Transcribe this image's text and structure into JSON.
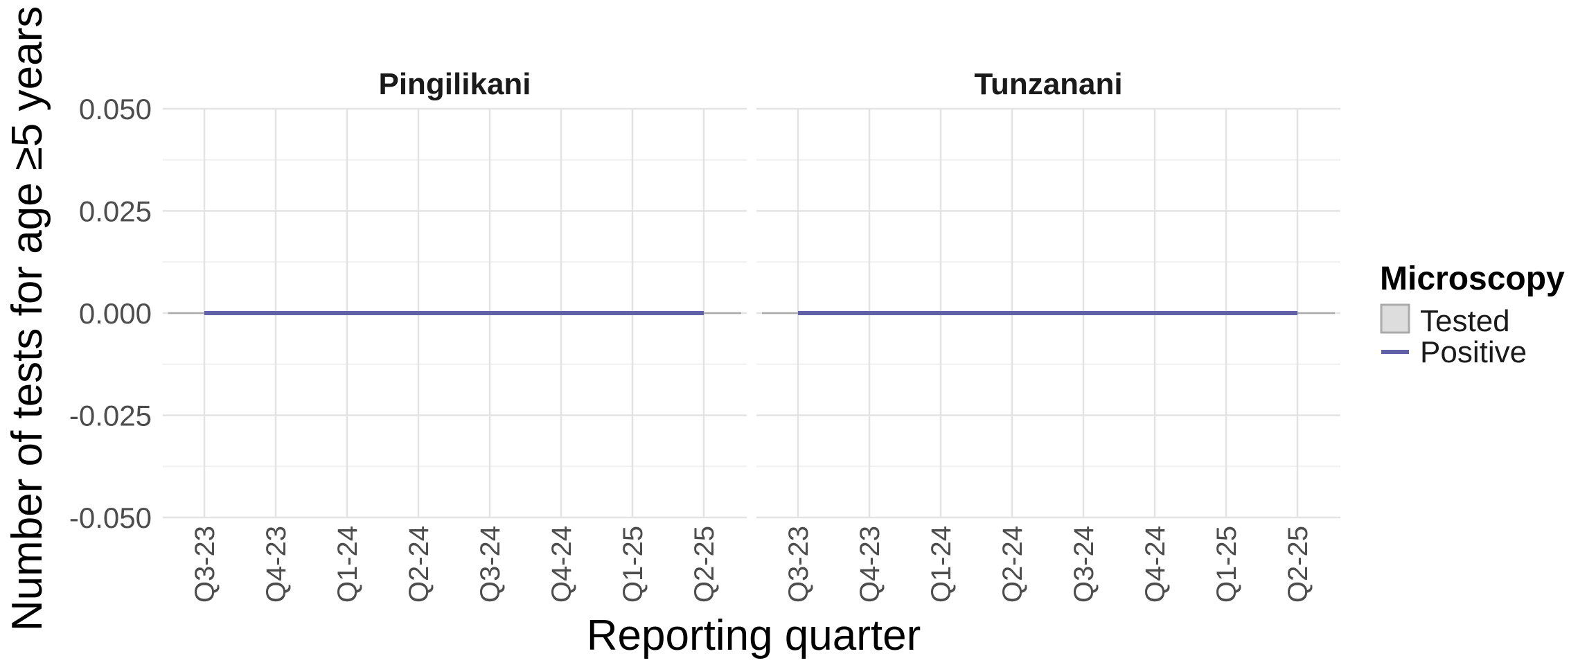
{
  "chart_data": {
    "type": "area",
    "facet_labels": [
      "Pingilikani",
      "Tunzanani"
    ],
    "categories": [
      "Q3-23",
      "Q4-23",
      "Q1-24",
      "Q2-24",
      "Q3-24",
      "Q4-24",
      "Q1-25",
      "Q2-25"
    ],
    "xlabel": "Reporting quarter",
    "ylabel": "Number of tests for age ≥5 years",
    "ylim": [
      -0.05,
      0.05
    ],
    "y_ticks": [
      "0.050",
      "0.025",
      "0.000",
      "-0.025",
      "-0.050"
    ],
    "y_tick_values": [
      0.05,
      0.025,
      0,
      -0.025,
      -0.05
    ],
    "grid": true,
    "legend": {
      "title": "Microscopy",
      "placement": "right",
      "items": [
        {
          "label": "Tested",
          "kind": "area"
        },
        {
          "label": "Positive",
          "kind": "line"
        }
      ]
    },
    "panels": [
      {
        "facet": "Pingilikani",
        "series": [
          {
            "name": "Tested",
            "values": [
              0,
              0,
              0,
              0,
              0,
              0,
              0,
              0
            ]
          },
          {
            "name": "Positive",
            "values": [
              0,
              0,
              0,
              0,
              0,
              0,
              0,
              0
            ]
          }
        ]
      },
      {
        "facet": "Tunzanani",
        "series": [
          {
            "name": "Tested",
            "values": [
              0,
              0,
              0,
              0,
              0,
              0,
              0,
              0
            ]
          },
          {
            "name": "Positive",
            "values": [
              0,
              0,
              0,
              0,
              0,
              0,
              0,
              0
            ]
          }
        ]
      }
    ],
    "colors": {
      "tested_fill": "#dddddd",
      "tested_outline": "#aaaaaa",
      "positive_line": "#6161a8",
      "grid_major": "#e3e3e3",
      "grid_minor": "#f0f0f0"
    }
  }
}
